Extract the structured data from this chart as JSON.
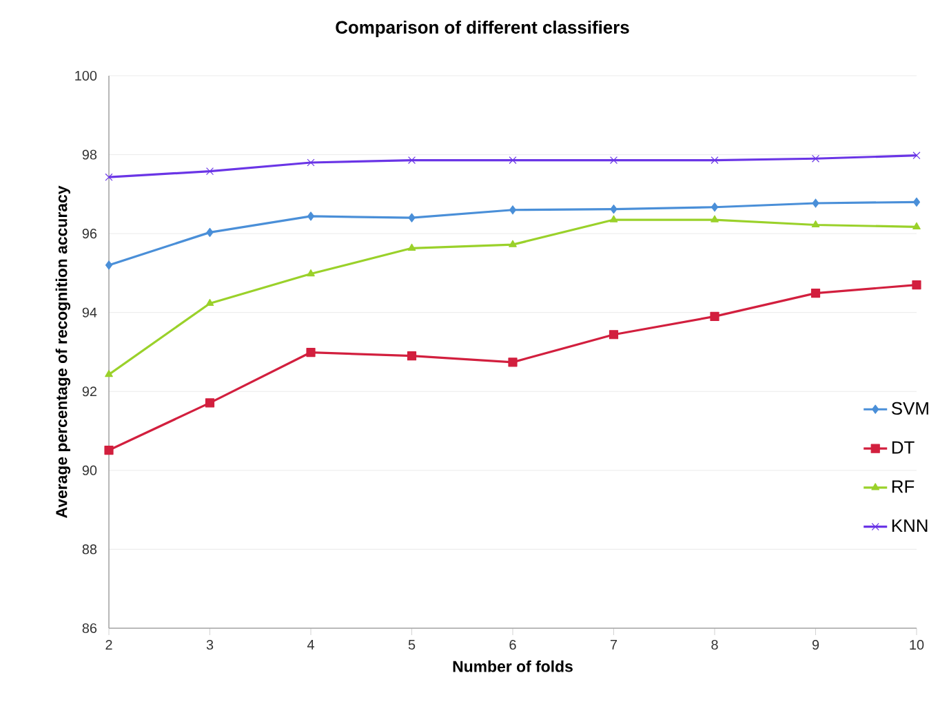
{
  "chart_data": {
    "type": "line",
    "title": "Comparison of different classifiers",
    "xlabel": "Number of folds",
    "ylabel": "Average percentage of recognition accuracy",
    "x": [
      2,
      3,
      4,
      5,
      6,
      7,
      8,
      9,
      10
    ],
    "series": [
      {
        "name": "SVM",
        "color": "#4a8fd8",
        "marker": "diamond",
        "values": [
          95.2,
          96.03,
          96.44,
          96.4,
          96.6,
          96.62,
          96.67,
          96.77,
          96.8
        ]
      },
      {
        "name": "DT",
        "color": "#d21f3e",
        "marker": "square",
        "values": [
          90.51,
          91.71,
          92.99,
          92.9,
          92.74,
          93.44,
          93.9,
          94.49,
          94.7
        ]
      },
      {
        "name": "RF",
        "color": "#9ad12a",
        "marker": "triangle",
        "values": [
          92.43,
          94.23,
          94.98,
          95.63,
          95.72,
          96.35,
          96.35,
          96.22,
          96.17
        ]
      },
      {
        "name": "KNN",
        "color": "#6a35e6",
        "marker": "cross",
        "values": [
          97.43,
          97.58,
          97.8,
          97.86,
          97.86,
          97.86,
          97.86,
          97.9,
          97.98
        ]
      }
    ],
    "xlim": [
      2,
      10
    ],
    "ylim": [
      86,
      100
    ],
    "xticks": [
      2,
      3,
      4,
      5,
      6,
      7,
      8,
      9,
      10
    ],
    "yticks": [
      86,
      88,
      90,
      92,
      94,
      96,
      98,
      100
    ],
    "grid": "y",
    "legend": "right",
    "line_style": "solid"
  }
}
